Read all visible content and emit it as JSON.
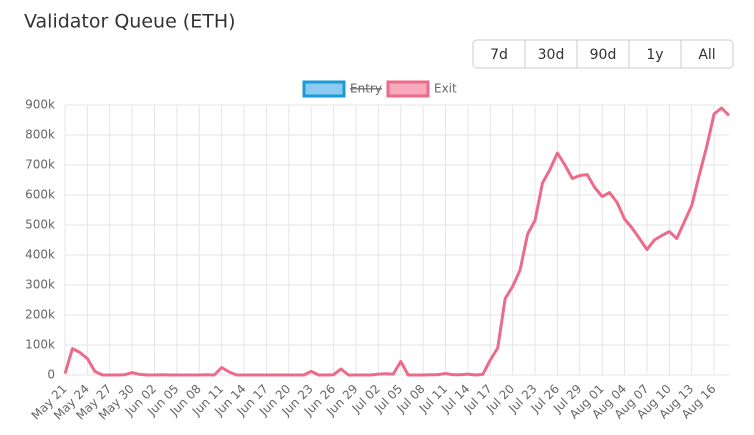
{
  "chart_data": {
    "type": "line",
    "title": "Validator Queue (ETH)",
    "range_buttons": [
      "7d",
      "30d",
      "90d",
      "1y",
      "All"
    ],
    "categories": [
      "May 21",
      null,
      null,
      "May 24",
      null,
      null,
      "May 27",
      null,
      null,
      "May 30",
      null,
      null,
      "Jun 02",
      null,
      null,
      "Jun 05",
      null,
      null,
      "Jun 08",
      null,
      null,
      "Jun 11",
      null,
      null,
      "Jun 14",
      null,
      null,
      "Jun 17",
      null,
      null,
      "Jun 20",
      null,
      null,
      "Jun 23",
      null,
      null,
      "Jun 26",
      null,
      null,
      "Jun 29",
      null,
      null,
      "Jul 02",
      null,
      null,
      "Jul 05",
      null,
      null,
      "Jul 08",
      null,
      null,
      "Jul 11",
      null,
      null,
      "Jul 14",
      null,
      null,
      "Jul 17",
      null,
      null,
      "Jul 20",
      null,
      null,
      "Jul 23",
      null,
      null,
      "Jul 26",
      null,
      null,
      "Jul 29",
      null,
      null,
      "Aug 01",
      null,
      null,
      "Aug 04",
      null,
      null,
      "Aug 07",
      null,
      null,
      "Aug 10",
      null,
      null,
      "Aug 13",
      null,
      null,
      "Aug 16",
      null,
      null
    ],
    "series": [
      {
        "name": "Entry",
        "color": "#8ccbef",
        "border": "#1a9ad6",
        "hidden": true
      },
      {
        "name": "Exit",
        "color": "#f7a8bb",
        "border": "#ec6a8a",
        "values": [
          5000,
          88000,
          75000,
          55000,
          12000,
          0,
          0,
          0,
          1000,
          8000,
          2000,
          0,
          0,
          1000,
          0,
          0,
          0,
          0,
          0,
          1000,
          0,
          25000,
          10000,
          0,
          0,
          0,
          0,
          0,
          0,
          0,
          0,
          0,
          0,
          12000,
          0,
          0,
          1000,
          20000,
          0,
          0,
          0,
          0,
          3000,
          4000,
          3000,
          45000,
          0,
          0,
          0,
          1000,
          1000,
          5000,
          1000,
          1000,
          3000,
          0,
          2000,
          50000,
          90000,
          255000,
          295000,
          350000,
          470000,
          515000,
          640000,
          685000,
          740000,
          700000,
          655000,
          665000,
          668000,
          625000,
          595000,
          608000,
          575000,
          520000,
          490000,
          455000,
          418000,
          450000,
          465000,
          478000,
          455000,
          510000,
          565000,
          665000,
          760000,
          870000,
          890000,
          865000
        ]
      }
    ],
    "ylim": [
      0,
      900000
    ],
    "yticks": [
      0,
      {
        "value": 100000,
        "label": "100k"
      },
      {
        "value": 200000,
        "label": "200k"
      },
      {
        "value": 300000,
        "label": "300k"
      },
      {
        "value": 400000,
        "label": "400k"
      },
      {
        "value": 500000,
        "label": "500k"
      },
      {
        "value": 600000,
        "label": "600k"
      },
      {
        "value": 700000,
        "label": "700k"
      },
      {
        "value": 800000,
        "label": "800k"
      },
      {
        "value": 900000,
        "label": "900k"
      }
    ],
    "grid": true
  }
}
